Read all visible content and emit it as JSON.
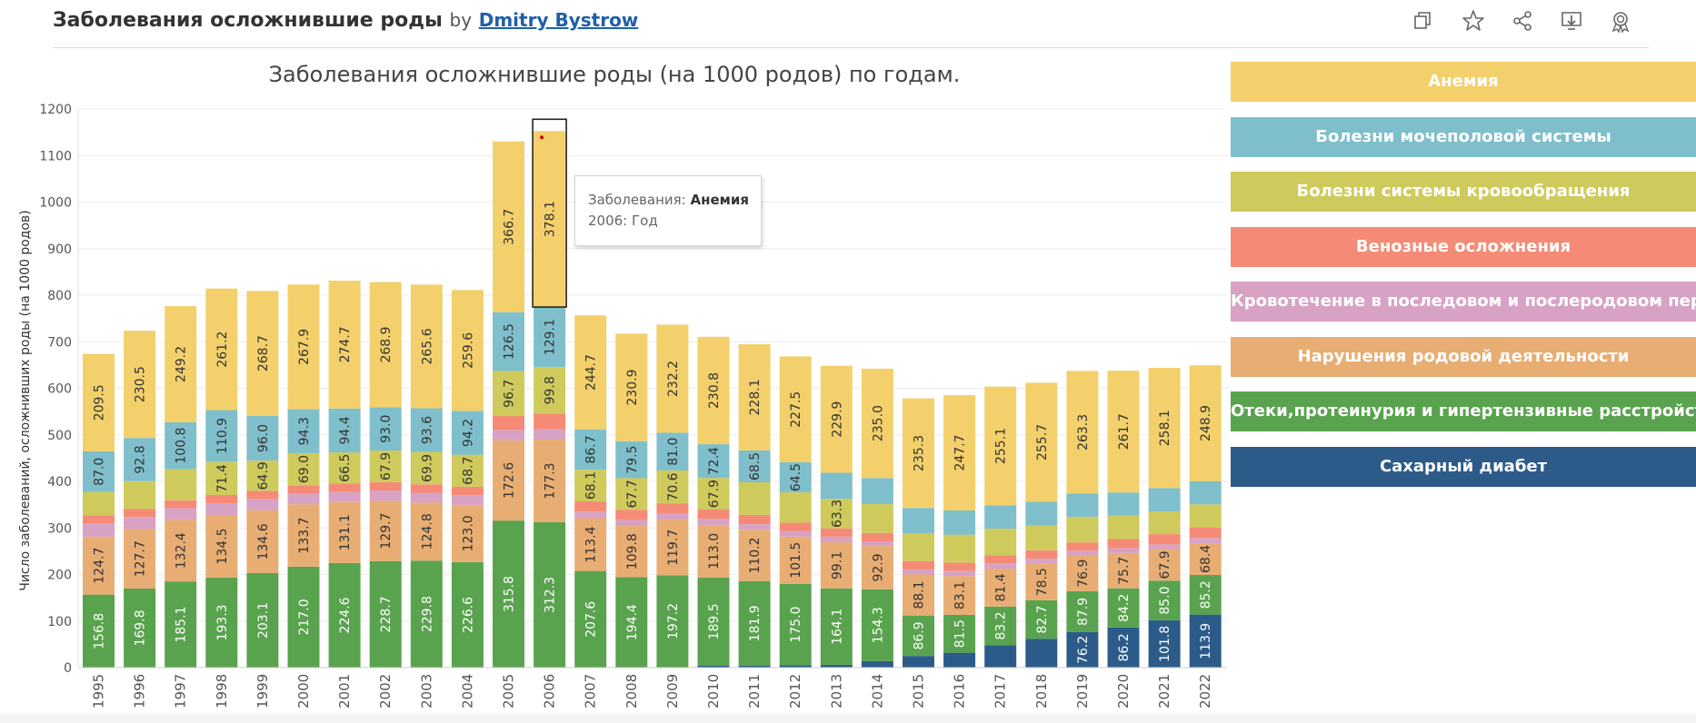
{
  "header": {
    "title": "Заболевания осложнившие роды",
    "by": "by",
    "author": "Dmitry Bystrow"
  },
  "toolbar": {
    "icons": [
      "duplicate-icon",
      "favorite-star-icon",
      "share-icon",
      "download-icon",
      "badge-icon"
    ]
  },
  "colors": {
    "Анемия": "#f3d06b",
    "Болезни мочеполовой системы": "#7fbfcb",
    "Болезни системы кровообращения": "#cfca5c",
    "Венозные осложнения": "#f58b76",
    "Кровотечение в последовом и послеродовом период": "#d7a2c4",
    "Нарушения родовой деятельности": "#e8ad73",
    "Отеки,протеинурия и гипертензивные расстройства": "#59a34e",
    "Сахарный диабет": "#2c5b8a"
  },
  "legend": [
    "Анемия",
    "Болезни мочеполовой системы",
    "Болезни системы кровообращения",
    "Венозные осложнения",
    "Кровотечение в последовом и послеродовом период",
    "Нарушения родовой деятельности",
    "Отеки,протеинурия и гипертензивные расстройства",
    "Сахарный диабет"
  ],
  "tooltip": {
    "label1": "Заболевания:",
    "value1": "Анемия",
    "label2": "2006:",
    "value2": "Год"
  },
  "chart_data": {
    "type": "bar",
    "stacked": true,
    "title": "Заболевания осложнившие роды (на 1000 родов) по годам.",
    "xlabel": "",
    "ylabel": "Число заболеваний, осложнивших роды (на 1000 родов)",
    "ylim": [
      0,
      1200
    ],
    "yticks": [
      0,
      100,
      200,
      300,
      400,
      500,
      600,
      700,
      800,
      900,
      1000,
      1100,
      1200
    ],
    "categories": [
      "1995",
      "1996",
      "1997",
      "1998",
      "1999",
      "2000",
      "2001",
      "2002",
      "2003",
      "2004",
      "2005",
      "2006",
      "2007",
      "2008",
      "2009",
      "2010",
      "2011",
      "2012",
      "2013",
      "2014",
      "2015",
      "2016",
      "2017",
      "2018",
      "2019",
      "2020",
      "2021",
      "2022"
    ],
    "highlight": "2006",
    "series": [
      {
        "name": "Сахарный диабет",
        "values": [
          0,
          0,
          0,
          0,
          0,
          0,
          0,
          0,
          0,
          0,
          0,
          0,
          0,
          0,
          1,
          4,
          4,
          5,
          6,
          14,
          25,
          32,
          48,
          62,
          76.2,
          86.2,
          101.8,
          113.9
        ],
        "labels": [
          null,
          null,
          null,
          null,
          null,
          null,
          null,
          null,
          null,
          null,
          null,
          null,
          null,
          null,
          null,
          null,
          null,
          null,
          null,
          null,
          null,
          null,
          null,
          null,
          "76.2",
          "86.2",
          "101.8",
          "113.9"
        ]
      },
      {
        "name": "Отеки,протеинурия и гипертензивные расстройства",
        "values": [
          156.8,
          169.8,
          185.1,
          193.3,
          203.1,
          217.0,
          224.6,
          228.7,
          229.8,
          226.6,
          315.8,
          312.3,
          207.6,
          194.4,
          197.2,
          189.5,
          181.9,
          175.0,
          164.1,
          154.3,
          86.9,
          81.5,
          83.2,
          82.7,
          87.9,
          84.2,
          85.0,
          85.2
        ],
        "labels": [
          "156.8",
          "169.8",
          "185.1",
          "193.3",
          "203.1",
          "217.0",
          "224.6",
          "228.7",
          "229.8",
          "226.6",
          "315.8",
          "312.3",
          "207.6",
          "194.4",
          "197.2",
          "189.5",
          "181.9",
          "175.0",
          "164.1",
          "154.3",
          "86.9",
          "81.5",
          "83.2",
          "82.7",
          "87.9",
          "84.2",
          "85.0",
          "85.2"
        ]
      },
      {
        "name": "Нарушения родовой деятельности",
        "values": [
          124.7,
          127.7,
          132.4,
          134.5,
          134.6,
          133.7,
          131.1,
          129.7,
          124.8,
          123.0,
          172.6,
          177.3,
          113.4,
          109.8,
          119.7,
          113.0,
          110.2,
          101.5,
          99.1,
          92.9,
          88.1,
          83.1,
          81.4,
          78.5,
          76.9,
          75.7,
          67.9,
          68.4
        ],
        "labels": [
          "124.7",
          "127.7",
          "132.4",
          "134.5",
          "134.6",
          "133.7",
          "131.1",
          "129.7",
          "124.8",
          "123.0",
          "172.6",
          "177.3",
          "113.4",
          "109.8",
          "119.7",
          "113.0",
          "110.2",
          "101.5",
          "99.1",
          "92.9",
          "88.1",
          "83.1",
          "81.4",
          "78.5",
          "76.9",
          "75.7",
          "67.9",
          "68.4"
        ]
      },
      {
        "name": "Кровотечение в последовом и послеродовом период",
        "values": [
          28,
          26,
          25,
          25,
          24,
          23,
          22,
          22,
          21,
          21,
          22,
          22,
          14,
          13,
          13,
          13,
          12,
          12,
          12,
          10,
          11,
          11,
          11,
          11,
          10,
          10,
          10,
          11
        ],
        "labels": [
          null,
          null,
          null,
          null,
          null,
          null,
          null,
          null,
          null,
          null,
          null,
          null,
          null,
          null,
          null,
          null,
          null,
          null,
          null,
          null,
          null,
          null,
          null,
          null,
          null,
          null,
          null,
          null
        ]
      },
      {
        "name": "Венозные осложнения",
        "values": [
          18,
          17,
          17,
          18,
          18,
          18,
          18,
          18,
          18,
          18,
          30,
          34,
          22,
          22,
          22,
          20,
          20,
          18,
          18,
          18,
          18,
          18,
          18,
          18,
          18,
          20,
          22,
          22
        ],
        "labels": [
          null,
          null,
          null,
          null,
          null,
          null,
          null,
          null,
          null,
          null,
          null,
          null,
          null,
          null,
          null,
          null,
          null,
          null,
          null,
          null,
          null,
          null,
          null,
          null,
          null,
          null,
          null,
          null
        ]
      },
      {
        "name": "Болезни системы кровообращения",
        "values": [
          50,
          60,
          67,
          71.4,
          64.9,
          69.0,
          66.5,
          67.9,
          69.9,
          68.7,
          96.7,
          99.8,
          68.1,
          67.7,
          70.6,
          67.9,
          70,
          65,
          63.3,
          62,
          60,
          60,
          57,
          53,
          55,
          50,
          49,
          50
        ],
        "labels": [
          null,
          null,
          null,
          "71.4",
          "64.9",
          "69.0",
          "66.5",
          "67.9",
          "69.9",
          "68.7",
          "96.7",
          "99.8",
          "68.1",
          "67.7",
          "70.6",
          "67.9",
          null,
          null,
          "63.3",
          null,
          null,
          null,
          null,
          null,
          null,
          null,
          null,
          null
        ]
      },
      {
        "name": "Болезни мочеполовой системы",
        "values": [
          87.0,
          92.8,
          100.8,
          110.9,
          96.0,
          94.3,
          94.4,
          93.0,
          93.6,
          94.2,
          126.5,
          129.1,
          86.7,
          79.5,
          81.0,
          72.4,
          68.5,
          64.5,
          56,
          56,
          54,
          52,
          50,
          51,
          50,
          50,
          50,
          50
        ],
        "labels": [
          "87.0",
          "92.8",
          "100.8",
          "110.9",
          "96.0",
          "94.3",
          "94.4",
          "93.0",
          "93.6",
          "94.2",
          "126.5",
          "129.1",
          "86.7",
          "79.5",
          "81.0",
          "72.4",
          "68.5",
          "64.5",
          null,
          null,
          null,
          null,
          null,
          null,
          null,
          null,
          null,
          null
        ]
      },
      {
        "name": "Анемия",
        "values": [
          209.5,
          230.5,
          249.2,
          261.2,
          268.7,
          267.9,
          274.7,
          268.9,
          265.6,
          259.6,
          366.7,
          378.1,
          244.7,
          230.9,
          232.2,
          230.8,
          228.1,
          227.5,
          229.9,
          235.0,
          235.3,
          247.7,
          255.1,
          255.7,
          263.3,
          261.7,
          258.1,
          248.9
        ],
        "labels": [
          "209.5",
          "230.5",
          "249.2",
          "261.2",
          "268.7",
          "267.9",
          "274.7",
          "268.9",
          "265.6",
          "259.6",
          "366.7",
          "378.1",
          "244.7",
          "230.9",
          "232.2",
          "230.8",
          "228.1",
          "227.5",
          "229.9",
          "235.0",
          "235.3",
          "247.7",
          "255.1",
          "255.7",
          "263.3",
          "261.7",
          "258.1",
          "248.9"
        ]
      }
    ]
  }
}
